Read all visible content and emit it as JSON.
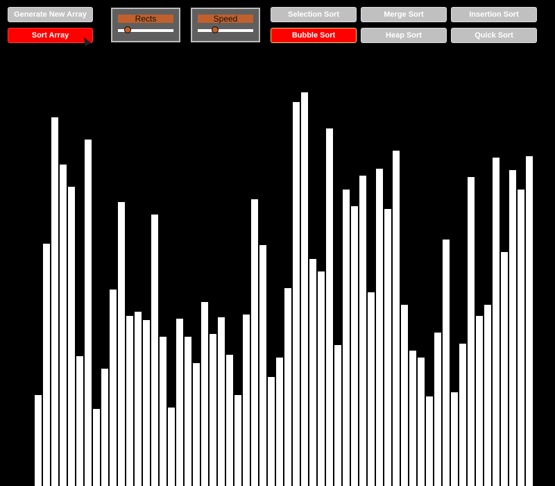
{
  "toolbar": {
    "generate_label": "Generate New Array",
    "sort_label": "Sort Array"
  },
  "sliders": {
    "rects": {
      "label": "Rects",
      "value": 0.17
    },
    "speed": {
      "label": "Speed",
      "value": 0.31
    }
  },
  "algorithms": [
    {
      "label": "Selection Sort",
      "selected": false
    },
    {
      "label": "Merge Sort",
      "selected": false
    },
    {
      "label": "Insertion Sort",
      "selected": false
    },
    {
      "label": "Bubble Sort",
      "selected": true
    },
    {
      "label": "Heap Sort",
      "selected": false
    },
    {
      "label": "Quick Sort",
      "selected": false
    }
  ],
  "array": {
    "max_value": 700,
    "values": [
      131,
      349,
      531,
      463,
      431,
      187,
      499,
      111,
      169,
      283,
      409,
      245,
      251,
      239,
      391,
      215,
      113,
      241,
      215,
      177,
      265,
      219,
      243,
      189,
      131,
      247,
      413,
      347,
      157,
      185,
      285,
      553,
      567,
      327,
      309,
      515,
      203,
      427,
      403,
      447,
      279,
      457,
      399,
      483,
      261,
      195,
      185,
      129,
      221,
      355,
      135,
      205,
      445,
      245,
      261,
      473,
      337,
      455,
      427,
      475
    ]
  },
  "colors": {
    "background": "#000000",
    "bar": "#ffffff",
    "accent_red": "#ff0000",
    "button_gray": "#c0c0c0",
    "slider_orange": "#c0602c"
  }
}
